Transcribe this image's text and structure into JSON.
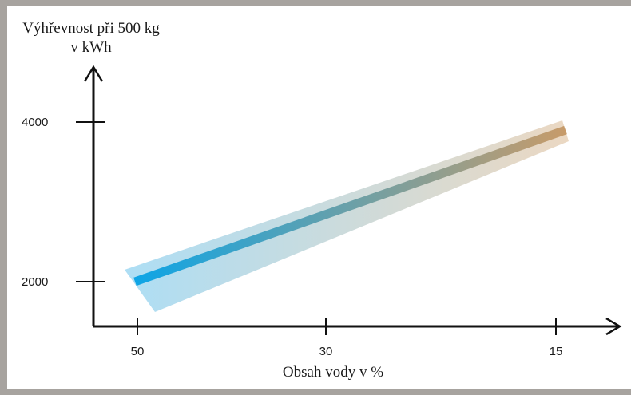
{
  "chart_data": {
    "type": "line",
    "ylabel_line1": "Výhřevnost při 500 kg",
    "ylabel_line2": "v kWh",
    "xlabel": "Obsah vody v %",
    "x_ticks": [
      "50",
      "30",
      "15"
    ],
    "y_ticks": [
      "2000",
      "4000"
    ],
    "xlim": [
      55,
      15
    ],
    "ylim": [
      1500,
      4500
    ],
    "grid": false,
    "series": [
      {
        "x": [
          50,
          15
        ],
        "y": [
          2000,
          3900
        ],
        "band_low": [
          1620,
          3820
        ],
        "band_high": [
          2150,
          3960
        ]
      }
    ],
    "colors": {
      "start": "#0ea5e6",
      "end": "#c79b6a",
      "band_start": "#a9dcf4",
      "band_end": "#ead6bf"
    }
  }
}
